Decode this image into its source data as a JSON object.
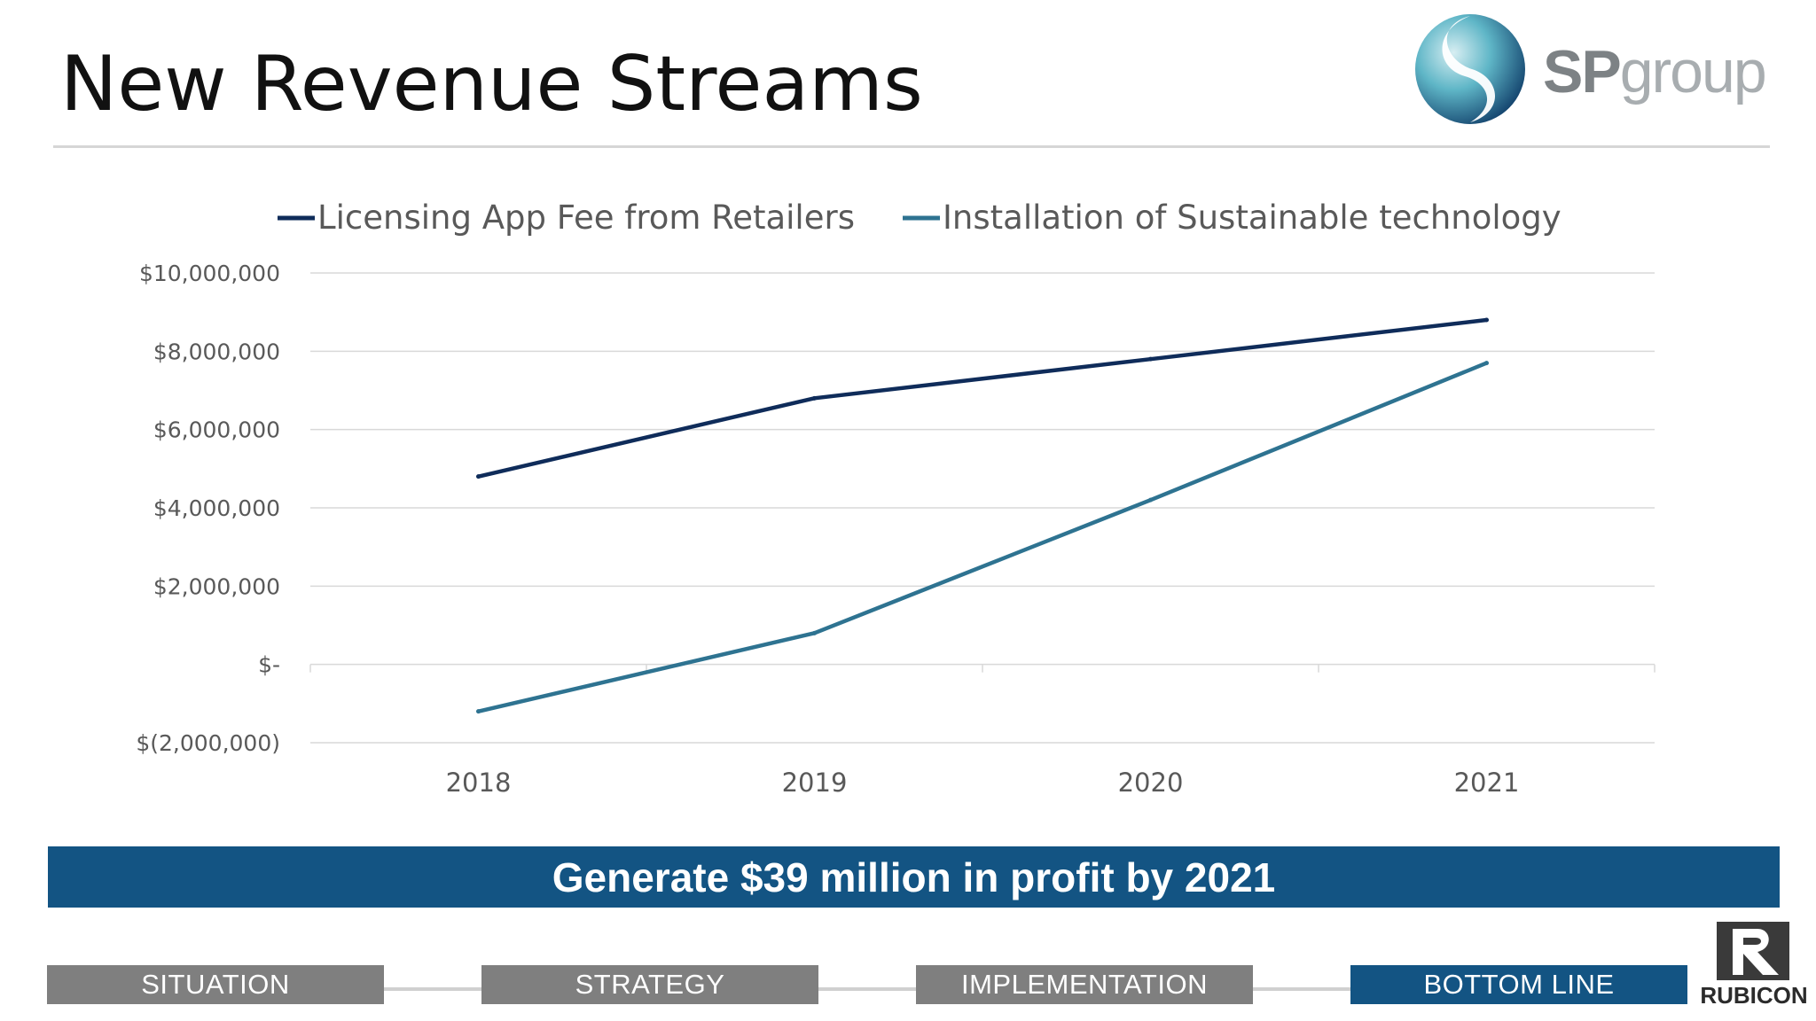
{
  "slide": {
    "title": "New Revenue Streams",
    "banner_text": "Generate $39 million in profit by 2021"
  },
  "logo": {
    "text_sp": "SP",
    "text_group": "group"
  },
  "nav": {
    "items": [
      {
        "label": "SITUATION",
        "active": false
      },
      {
        "label": "STRATEGY",
        "active": false
      },
      {
        "label": "IMPLEMENTATION",
        "active": false
      },
      {
        "label": "BOTTOM LINE",
        "active": true
      }
    ]
  },
  "rubicon": {
    "text": "RUBICON"
  },
  "colors": {
    "series1": "#0f2c5a",
    "series2": "#2e7391",
    "banner": "#135483",
    "nav_inactive": "#7f7f7f",
    "gridline": "#d9d9d9",
    "axis_text": "#595959"
  },
  "chart_data": {
    "type": "line",
    "title": "",
    "xlabel": "",
    "ylabel": "",
    "categories": [
      "2018",
      "2019",
      "2020",
      "2021"
    ],
    "series": [
      {
        "name": "Licensing App Fee from Retailers",
        "values": [
          4800000,
          6800000,
          7800000,
          8800000
        ]
      },
      {
        "name": "Installation of Sustainable technology",
        "values": [
          -1200000,
          800000,
          4200000,
          7700000
        ]
      }
    ],
    "ylim": [
      -2000000,
      10000000
    ],
    "yticks": [
      10000000,
      8000000,
      6000000,
      4000000,
      2000000,
      0,
      -2000000
    ],
    "ytick_labels": [
      "$10,000,000",
      "$8,000,000",
      "$6,000,000",
      "$4,000,000",
      "$2,000,000",
      "$-",
      "$(2,000,000)"
    ],
    "grid": true,
    "legend_position": "top"
  }
}
